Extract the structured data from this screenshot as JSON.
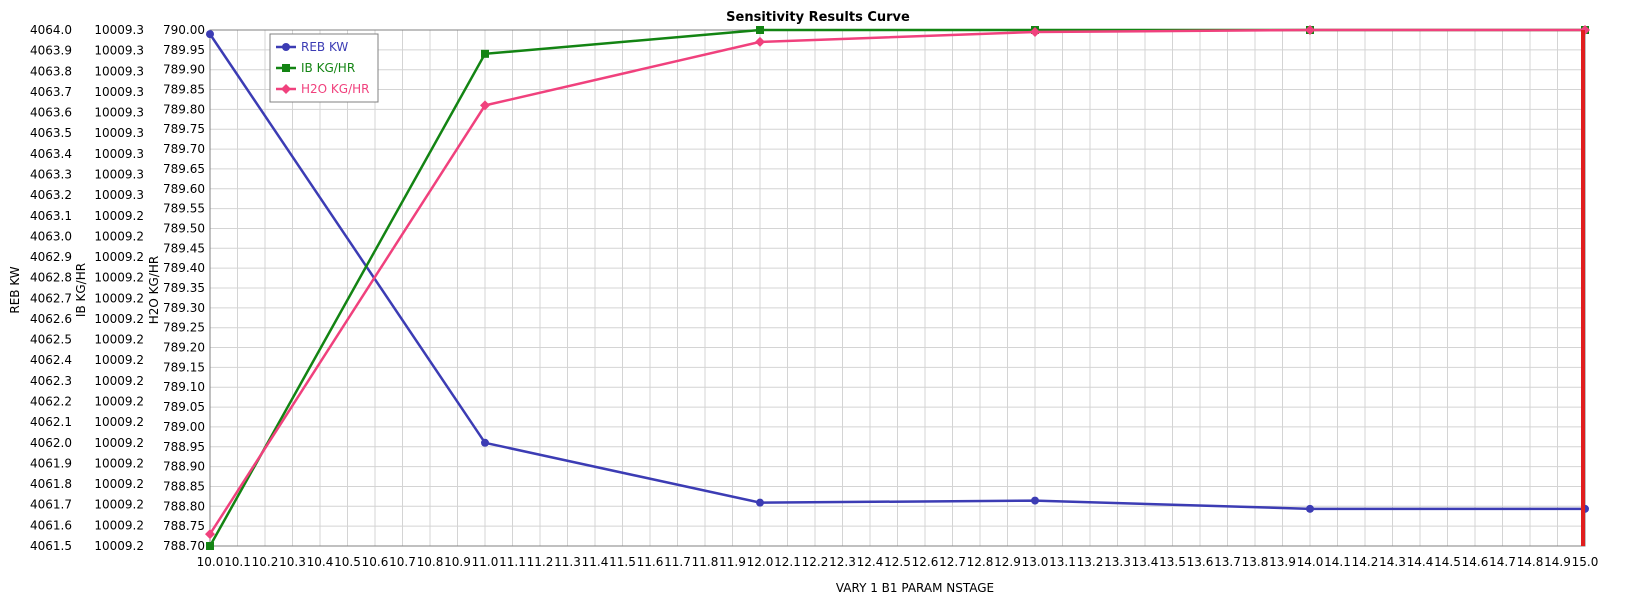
{
  "chart_data": {
    "type": "line",
    "title": "Sensitivity Results Curve",
    "xlabel": "VARY   1 B1 PARAM NSTAGE",
    "x": [
      10,
      11,
      12,
      13,
      14,
      15
    ],
    "xlim": [
      10,
      15
    ],
    "xticks": [
      "10.0",
      "10.1",
      "10.2",
      "10.3",
      "10.4",
      "10.5",
      "10.6",
      "10.7",
      "10.8",
      "10.9",
      "11.0",
      "11.1",
      "11.2",
      "11.3",
      "11.4",
      "11.5",
      "11.6",
      "11.7",
      "11.8",
      "11.9",
      "12.0",
      "12.1",
      "12.2",
      "12.3",
      "12.4",
      "12.5",
      "12.6",
      "12.7",
      "12.8",
      "12.9",
      "13.0",
      "13.1",
      "13.2",
      "13.3",
      "13.4",
      "13.5",
      "13.6",
      "13.7",
      "13.8",
      "13.9",
      "14.0",
      "14.1",
      "14.2",
      "14.3",
      "14.4",
      "14.5",
      "14.6",
      "14.7",
      "14.8",
      "14.9",
      "15.0"
    ],
    "grid": true,
    "legend_position": "top-left",
    "y_axes": [
      {
        "label": "REB KW",
        "ylim": [
          4061.5,
          4064.0
        ],
        "ticks": [
          "4064.0",
          "4063.9",
          "4063.8",
          "4063.7",
          "4063.6",
          "4063.5",
          "4063.4",
          "4063.3",
          "4063.2",
          "4063.1",
          "4063.0",
          "4062.9",
          "4062.8",
          "4062.7",
          "4062.6",
          "4062.5",
          "4062.4",
          "4062.3",
          "4062.2",
          "4062.1",
          "4062.0",
          "4061.9",
          "4061.8",
          "4061.7",
          "4061.6",
          "4061.5"
        ]
      },
      {
        "label": "IB KG/HR",
        "ticks": [
          "10009.3",
          "10009.3",
          "10009.3",
          "10009.3",
          "10009.3",
          "10009.3",
          "10009.3",
          "10009.3",
          "10009.3",
          "10009.2",
          "10009.2",
          "10009.2",
          "10009.2",
          "10009.2",
          "10009.2",
          "10009.2",
          "10009.2",
          "10009.2",
          "10009.2",
          "10009.2",
          "10009.2",
          "10009.2",
          "10009.2",
          "10009.2",
          "10009.2",
          "10009.2"
        ]
      },
      {
        "label": "H2O KG/HR",
        "ylim": [
          788.7,
          790.0
        ],
        "ticks": [
          "790.00",
          "789.95",
          "789.90",
          "789.85",
          "789.80",
          "789.75",
          "789.70",
          "789.65",
          "789.60",
          "789.55",
          "789.50",
          "789.45",
          "789.40",
          "789.35",
          "789.30",
          "789.25",
          "789.20",
          "789.15",
          "789.10",
          "789.05",
          "789.00",
          "788.95",
          "788.90",
          "788.85",
          "788.80",
          "788.75",
          "788.70"
        ]
      }
    ],
    "series": [
      {
        "name": "REB KW",
        "color": "#3c3cb4",
        "marker": "circle",
        "y_axis": 0,
        "values": [
          4063.98,
          4062.0,
          4061.71,
          4061.72,
          4061.68,
          4061.68
        ]
      },
      {
        "name": "IB KG/HR",
        "color": "#138413",
        "marker": "square",
        "y_axis": 2,
        "values": [
          788.7,
          789.94,
          790.0,
          790.0,
          790.0,
          790.0
        ]
      },
      {
        "name": "H2O KG/HR",
        "color": "#f0417d",
        "marker": "diamond",
        "y_axis": 2,
        "values": [
          788.73,
          789.81,
          789.97,
          789.995,
          790.0,
          790.0
        ]
      }
    ],
    "cursor_x": 15.0,
    "cursor_color": "#e01e1e"
  }
}
